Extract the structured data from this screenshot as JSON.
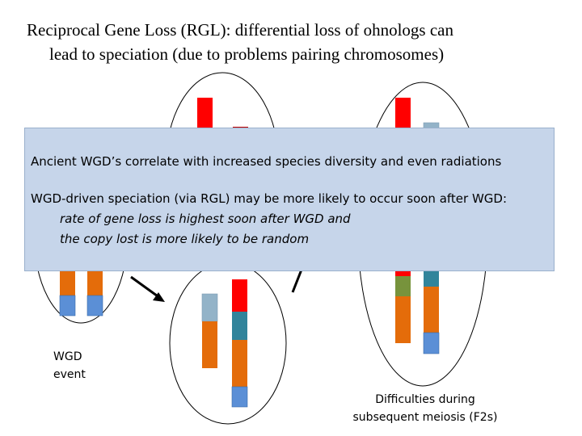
{
  "title": {
    "line1": "Reciprocal Gene Loss (RGL):  differential loss of ohnologs can",
    "line2": "lead to speciation (due to problems pairing chromosomes)"
  },
  "box": {
    "statement1": "Ancient WGD’s correlate with increased species diversity and even radiations",
    "statement2": "WGD-driven speciation (via RGL) may be more likely to occur soon after WGD:",
    "detail1": "rate of gene loss is highest soon after WGD and",
    "detail2": "the copy lost is more likely to be random"
  },
  "captions": {
    "wgd_line1": "WGD",
    "wgd_line2": "event",
    "difficulties_line1": "Difficulties during",
    "difficulties_line2": "subsequent meiosis (F2s)"
  },
  "colors": {
    "red": "#ff0000",
    "orange": "#e46c0a",
    "blue": "#5b8fd6",
    "teal": "#31849b",
    "lightblue": "#93b3c8",
    "green": "#77933c",
    "overlay": "#c6d5ea"
  }
}
